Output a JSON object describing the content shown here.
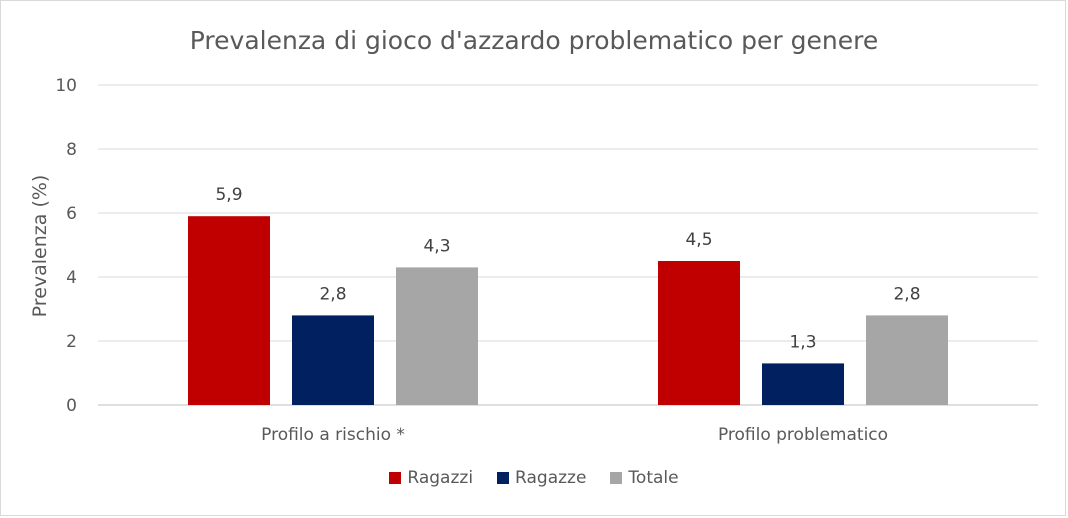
{
  "chart_data": {
    "type": "bar",
    "title": "Prevalenza di gioco d'azzardo problematico per genere",
    "xlabel": "",
    "ylabel": "Prevalenza (%)",
    "categories": [
      "Profilo a rischio *",
      "Profilo problematico"
    ],
    "series": [
      {
        "name": "Ragazzi",
        "color": "#c00000",
        "values": [
          5.9,
          4.5
        ],
        "labels": [
          "5,9",
          "4,5"
        ]
      },
      {
        "name": "Ragazze",
        "color": "#002060",
        "values": [
          2.8,
          1.3
        ],
        "labels": [
          "2,8",
          "1,3"
        ]
      },
      {
        "name": "Totale",
        "color": "#a6a6a6",
        "values": [
          4.3,
          2.8
        ],
        "labels": [
          "4,3",
          "2,8"
        ]
      }
    ],
    "ylim": [
      0,
      10
    ],
    "yticks": [
      0,
      2,
      4,
      6,
      8,
      10
    ],
    "grid": true,
    "legend_position": "bottom"
  }
}
